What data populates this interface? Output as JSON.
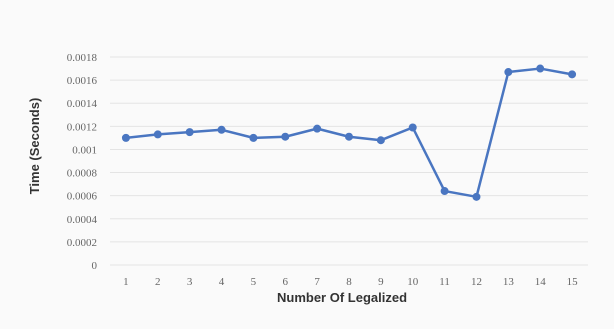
{
  "chart_data": {
    "type": "line",
    "title": "",
    "xlabel": "Number Of Legalized",
    "ylabel": "Time (Seconds)",
    "x": [
      1,
      2,
      3,
      4,
      5,
      6,
      7,
      8,
      9,
      10,
      11,
      12,
      13,
      14,
      15
    ],
    "x_tick_labels": [
      "1",
      "2",
      "3",
      "4",
      "5",
      "6",
      "7",
      "8",
      "9",
      "10",
      "11",
      "12",
      "13",
      "14",
      "15"
    ],
    "y_tick_labels": [
      "0",
      "0.0002",
      "0.0004",
      "0.0006",
      "0.0008",
      "0.001",
      "0.0012",
      "0.0014",
      "0.0016",
      "0.0018"
    ],
    "y_ticks": [
      0,
      0.0002,
      0.0004,
      0.0006,
      0.0008,
      0.001,
      0.0012,
      0.0014,
      0.0016,
      0.0018
    ],
    "ylim": [
      0,
      0.0018
    ],
    "grid": "horizontal",
    "legend": "none",
    "series": [
      {
        "values": [
          0.0011,
          0.00113,
          0.00115,
          0.00117,
          0.0011,
          0.00111,
          0.00118,
          0.00111,
          0.00108,
          0.00119,
          0.00064,
          0.00059,
          0.00167,
          0.0017,
          0.00165
        ],
        "color": "#4a76c1"
      }
    ]
  }
}
